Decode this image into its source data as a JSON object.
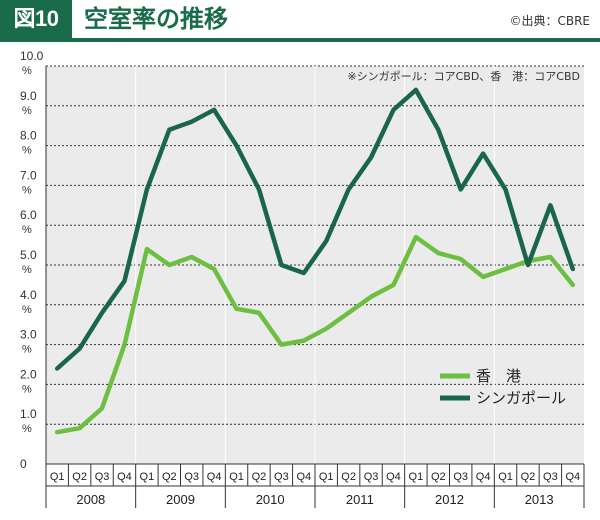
{
  "header": {
    "figure_label": "図10",
    "title": "空室率の推移",
    "source": "©出典：CBRE"
  },
  "colors": {
    "brand": "#1a6b4a",
    "singapore": "#19674a",
    "hongkong": "#6cbf3f",
    "plot_bg": "#ebebeb"
  },
  "chart_data": {
    "type": "line",
    "title": "空室率の推移",
    "note": "※シンガポール：コアCBD、香　港：コアCBD",
    "y_tick_labels": [
      "0",
      "1.0",
      "2.0",
      "3.0",
      "4.0",
      "5.0",
      "6.0",
      "7.0",
      "8.0",
      "9.0",
      "10.0"
    ],
    "y_unit": "%",
    "ylim": [
      0,
      10
    ],
    "quarters": [
      "Q1",
      "Q2",
      "Q3",
      "Q4",
      "Q1",
      "Q2",
      "Q3",
      "Q4",
      "Q1",
      "Q2",
      "Q3",
      "Q4",
      "Q1",
      "Q2",
      "Q3",
      "Q4",
      "Q1",
      "Q2",
      "Q3",
      "Q4",
      "Q1",
      "Q2",
      "Q3",
      "Q4"
    ],
    "years": [
      "2008",
      "2009",
      "2010",
      "2011",
      "2012",
      "2013"
    ],
    "series": [
      {
        "name": "香　港",
        "values": [
          0.8,
          0.9,
          1.4,
          3.0,
          5.4,
          5.0,
          5.2,
          4.9,
          3.9,
          3.8,
          3.0,
          3.1,
          3.4,
          3.8,
          4.2,
          4.5,
          5.7,
          5.3,
          5.15,
          4.7,
          4.9,
          5.1,
          5.2,
          4.5
        ]
      },
      {
        "name": "シンガポール",
        "values": [
          2.4,
          2.9,
          3.8,
          4.6,
          6.9,
          8.4,
          8.6,
          8.9,
          8.0,
          6.9,
          5.0,
          4.8,
          5.6,
          6.9,
          7.7,
          8.9,
          9.4,
          8.4,
          6.9,
          7.8,
          6.9,
          5.0,
          6.5,
          4.9
        ]
      }
    ],
    "legend_position": "right-middle",
    "grid": true
  }
}
